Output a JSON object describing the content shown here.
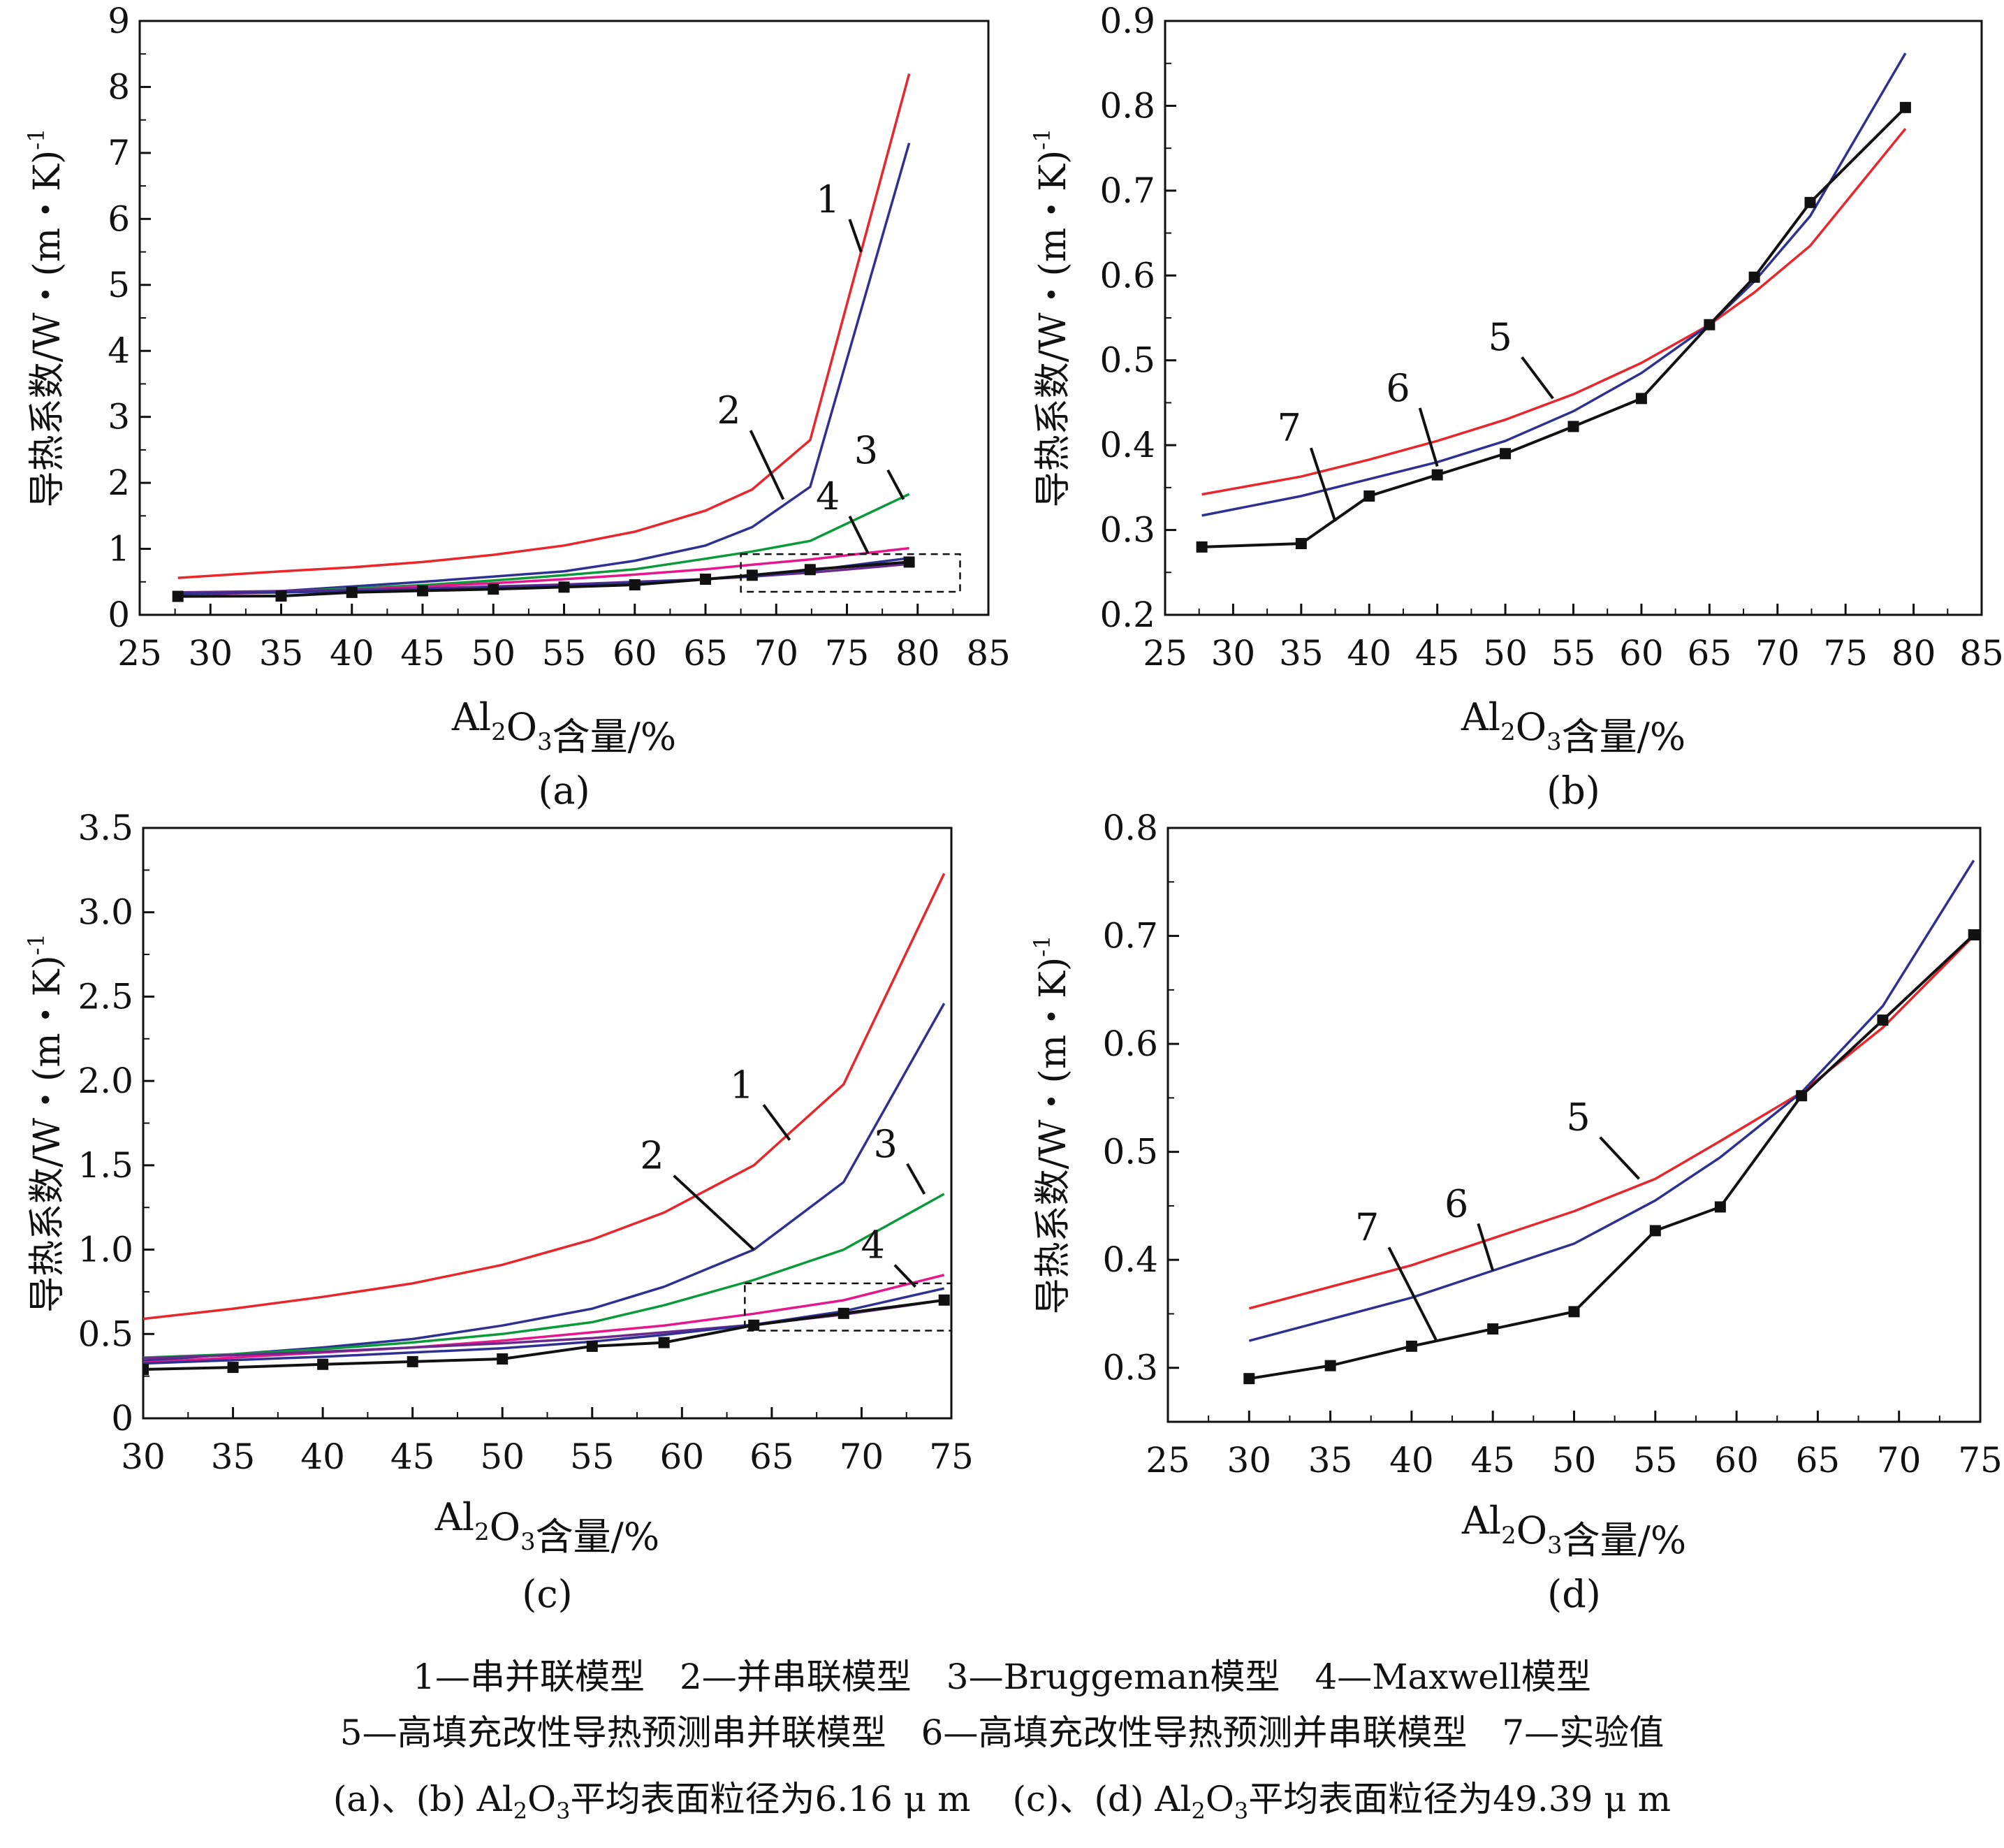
{
  "chart_data": [
    {
      "id": "a",
      "type": "line",
      "panel_label": "(a)",
      "xlabel_pre": "Al",
      "xlabel_sub1": "2",
      "xlabel_mid": "O",
      "xlabel_sub2": "3",
      "xlabel_post": "含量/%",
      "ylabel": "导热系数/W・(m・K)",
      "ylabel_sup": "-1",
      "xlim": [
        25,
        85
      ],
      "ylim": [
        0,
        9
      ],
      "xticks": [
        25,
        30,
        35,
        40,
        45,
        50,
        55,
        60,
        65,
        70,
        75,
        80,
        85
      ],
      "yticks": [
        0,
        1,
        2,
        3,
        4,
        5,
        6,
        7,
        8,
        9
      ],
      "ytick_labels": [
        "0",
        "1",
        "2",
        "3",
        "4",
        "5",
        "6",
        "7",
        "8",
        "9"
      ],
      "series": [
        {
          "key": "1",
          "color": "#e8262b",
          "x": [
            27.7,
            35,
            40,
            45,
            50,
            55,
            60,
            65,
            68.3,
            72.4,
            79.4
          ],
          "y": [
            0.56,
            0.66,
            0.72,
            0.8,
            0.91,
            1.05,
            1.26,
            1.58,
            1.9,
            2.65,
            8.2
          ]
        },
        {
          "key": "2",
          "color": "#2e3191",
          "x": [
            27.7,
            35,
            40,
            45,
            50,
            55,
            60,
            65,
            68.3,
            72.4,
            79.4
          ],
          "y": [
            0.3,
            0.36,
            0.43,
            0.5,
            0.58,
            0.66,
            0.82,
            1.05,
            1.33,
            1.94,
            7.15
          ]
        },
        {
          "key": "3",
          "color": "#0a9a3a",
          "x": [
            27.7,
            35,
            40,
            45,
            50,
            55,
            60,
            65,
            68.3,
            72.4,
            79.4
          ],
          "y": [
            0.3,
            0.35,
            0.4,
            0.45,
            0.52,
            0.6,
            0.69,
            0.85,
            0.96,
            1.12,
            1.83
          ]
        },
        {
          "key": "4",
          "color": "#e6178c",
          "x": [
            27.7,
            35,
            40,
            45,
            50,
            55,
            60,
            65,
            68.3,
            72.4,
            79.4
          ],
          "y": [
            0.31,
            0.34,
            0.38,
            0.43,
            0.48,
            0.54,
            0.61,
            0.69,
            0.76,
            0.84,
            1.01
          ]
        },
        {
          "key": "5",
          "color": "#6a2a8c",
          "x": [
            27.7,
            35,
            40,
            45,
            50,
            55,
            60,
            65,
            68.3,
            72.4,
            79.4
          ],
          "y": [
            0.34,
            0.36,
            0.38,
            0.4,
            0.43,
            0.46,
            0.5,
            0.54,
            0.58,
            0.64,
            0.77
          ]
        },
        {
          "key": "6",
          "color": "#2e3191",
          "x": [
            27.7,
            35,
            40,
            45,
            50,
            55,
            60,
            65,
            68.3,
            72.4,
            79.4
          ],
          "y": [
            0.32,
            0.34,
            0.36,
            0.38,
            0.41,
            0.44,
            0.49,
            0.54,
            0.59,
            0.67,
            0.86
          ]
        },
        {
          "key": "7",
          "color": "#111111",
          "marker": true,
          "x": [
            27.7,
            35,
            40,
            45,
            50,
            55,
            60,
            65,
            68.3,
            72.4,
            79.4
          ],
          "y": [
            0.28,
            0.285,
            0.34,
            0.365,
            0.39,
            0.42,
            0.455,
            0.54,
            0.6,
            0.685,
            0.8
          ]
        }
      ],
      "labels": [
        {
          "text": "1",
          "x": 76,
          "y": 5.5,
          "tx": 74.5,
          "ty": 6.1
        },
        {
          "text": "2",
          "x": 70.5,
          "y": 1.75,
          "tx": 67.5,
          "ty": 2.9
        },
        {
          "text": "3",
          "x": 79,
          "y": 1.75,
          "tx": 77.2,
          "ty": 2.3
        },
        {
          "text": "4",
          "x": 76.5,
          "y": 0.93,
          "tx": 74.5,
          "ty": 1.6
        }
      ],
      "box": {
        "x0": 67.5,
        "x1": 83,
        "y0": 0.35,
        "y1": 0.92
      }
    },
    {
      "id": "b",
      "type": "line",
      "panel_label": "(b)",
      "xlabel_pre": "Al",
      "xlabel_sub1": "2",
      "xlabel_mid": "O",
      "xlabel_sub2": "3",
      "xlabel_post": "含量/%",
      "ylabel": "导热系数/W・(m・K)",
      "ylabel_sup": "-1",
      "xlim": [
        25,
        85
      ],
      "ylim": [
        0.2,
        0.9
      ],
      "xticks": [
        25,
        30,
        35,
        40,
        45,
        50,
        55,
        60,
        65,
        70,
        75,
        80,
        85
      ],
      "yticks": [
        0.2,
        0.3,
        0.4,
        0.5,
        0.6,
        0.7,
        0.8,
        0.9
      ],
      "ytick_labels": [
        "0.2",
        "0.3",
        "0.4",
        "0.5",
        "0.6",
        "0.7",
        "0.8",
        "0.9"
      ],
      "series": [
        {
          "key": "5",
          "color": "#e8262b",
          "x": [
            27.7,
            35,
            40,
            45,
            50,
            55,
            60,
            65,
            68.3,
            72.4,
            79.4
          ],
          "y": [
            0.342,
            0.363,
            0.383,
            0.405,
            0.43,
            0.46,
            0.497,
            0.542,
            0.58,
            0.635,
            0.773
          ]
        },
        {
          "key": "6",
          "color": "#2e3191",
          "x": [
            27.7,
            35,
            40,
            45,
            50,
            55,
            60,
            65,
            68.3,
            72.4,
            79.4
          ],
          "y": [
            0.317,
            0.34,
            0.36,
            0.38,
            0.405,
            0.44,
            0.485,
            0.542,
            0.593,
            0.67,
            0.862
          ]
        },
        {
          "key": "7",
          "color": "#111111",
          "marker": true,
          "x": [
            27.7,
            35,
            40,
            45,
            50,
            55,
            60,
            65,
            68.3,
            72.4,
            79.4
          ],
          "y": [
            0.28,
            0.284,
            0.34,
            0.365,
            0.39,
            0.422,
            0.455,
            0.542,
            0.598,
            0.686,
            0.798
          ]
        }
      ],
      "labels": [
        {
          "text": "5",
          "x": 53.5,
          "y": 0.455,
          "tx": 50.5,
          "ty": 0.512
        },
        {
          "text": "6",
          "x": 45,
          "y": 0.375,
          "tx": 43,
          "ty": 0.452
        },
        {
          "text": "7",
          "x": 37.5,
          "y": 0.31,
          "tx": 35,
          "ty": 0.405
        }
      ]
    },
    {
      "id": "c",
      "type": "line",
      "panel_label": "(c)",
      "xlabel_pre": "Al",
      "xlabel_sub1": "2",
      "xlabel_mid": "O",
      "xlabel_sub2": "3",
      "xlabel_post": "含量/%",
      "ylabel": "导热系数/W・(m・K)",
      "ylabel_sup": "-1",
      "xlim": [
        30,
        75
      ],
      "ylim": [
        0,
        3.5
      ],
      "xticks": [
        30,
        35,
        40,
        45,
        50,
        55,
        60,
        65,
        70,
        75
      ],
      "yticks": [
        0,
        0.5,
        1.0,
        1.5,
        2.0,
        2.5,
        3.0,
        3.5
      ],
      "ytick_labels": [
        "0",
        "0.5",
        "1.0",
        "1.5",
        "2.0",
        "2.5",
        "3.0",
        "3.5"
      ],
      "series": [
        {
          "key": "1",
          "color": "#e8262b",
          "x": [
            30,
            35,
            40,
            45,
            50,
            55,
            59,
            64,
            69,
            74.6
          ],
          "y": [
            0.59,
            0.65,
            0.72,
            0.8,
            0.91,
            1.06,
            1.22,
            1.5,
            1.98,
            3.23
          ]
        },
        {
          "key": "2",
          "color": "#2e3191",
          "x": [
            30,
            35,
            40,
            45,
            50,
            55,
            59,
            64,
            69,
            74.6
          ],
          "y": [
            0.34,
            0.38,
            0.42,
            0.47,
            0.55,
            0.65,
            0.78,
            1.0,
            1.4,
            2.46
          ]
        },
        {
          "key": "3",
          "color": "#0a9a3a",
          "x": [
            30,
            35,
            40,
            45,
            50,
            55,
            59,
            64,
            69,
            74.6
          ],
          "y": [
            0.36,
            0.38,
            0.41,
            0.45,
            0.5,
            0.57,
            0.67,
            0.82,
            1.0,
            1.33
          ]
        },
        {
          "key": "4",
          "color": "#e6178c",
          "x": [
            30,
            35,
            40,
            45,
            50,
            55,
            59,
            64,
            69,
            74.6
          ],
          "y": [
            0.33,
            0.36,
            0.39,
            0.42,
            0.46,
            0.51,
            0.55,
            0.62,
            0.7,
            0.85
          ]
        },
        {
          "key": "5",
          "color": "#6a2a8c",
          "x": [
            30,
            35,
            40,
            45,
            50,
            55,
            59,
            64,
            69,
            74.6
          ],
          "y": [
            0.355,
            0.375,
            0.395,
            0.42,
            0.445,
            0.475,
            0.51,
            0.555,
            0.615,
            0.7
          ]
        },
        {
          "key": "6",
          "color": "#2e3191",
          "x": [
            30,
            35,
            40,
            45,
            50,
            55,
            59,
            64,
            69,
            74.6
          ],
          "y": [
            0.325,
            0.345,
            0.365,
            0.39,
            0.415,
            0.455,
            0.495,
            0.555,
            0.635,
            0.77
          ]
        },
        {
          "key": "7",
          "color": "#111111",
          "marker": true,
          "x": [
            30,
            35,
            40,
            45,
            50,
            55,
            59,
            64,
            69,
            74.6
          ],
          "y": [
            0.29,
            0.302,
            0.32,
            0.336,
            0.352,
            0.427,
            0.449,
            0.552,
            0.622,
            0.701
          ]
        }
      ],
      "labels": [
        {
          "text": "1",
          "x": 66,
          "y": 1.65,
          "tx": 64,
          "ty": 1.9
        },
        {
          "text": "2",
          "x": 64,
          "y": 1.0,
          "tx": 59,
          "ty": 1.48
        },
        {
          "text": "3",
          "x": 73.5,
          "y": 1.33,
          "tx": 72,
          "ty": 1.55
        },
        {
          "text": "4",
          "x": 73,
          "y": 0.78,
          "tx": 71.3,
          "ty": 0.95
        }
      ],
      "box": {
        "x0": 63.5,
        "x1": 75,
        "y0": 0.52,
        "y1": 0.8
      }
    },
    {
      "id": "d",
      "type": "line",
      "panel_label": "(d)",
      "xlabel_pre": "Al",
      "xlabel_sub1": "2",
      "xlabel_mid": "O",
      "xlabel_sub2": "3",
      "xlabel_post": "含量/%",
      "ylabel": "导热系数/W・(m・K)",
      "ylabel_sup": "-1",
      "xlim": [
        25,
        75
      ],
      "ylim": [
        0.25,
        0.8
      ],
      "xticks": [
        25,
        30,
        35,
        40,
        45,
        50,
        55,
        60,
        65,
        70,
        75
      ],
      "yticks": [
        0.3,
        0.4,
        0.5,
        0.6,
        0.7,
        0.8
      ],
      "ytick_labels": [
        "0.3",
        "0.4",
        "0.5",
        "0.6",
        "0.7",
        "0.8"
      ],
      "series": [
        {
          "key": "5",
          "color": "#e8262b",
          "x": [
            30,
            35,
            40,
            45,
            50,
            55,
            59,
            64,
            69,
            74.6
          ],
          "y": [
            0.355,
            0.375,
            0.395,
            0.42,
            0.445,
            0.475,
            0.51,
            0.555,
            0.615,
            0.7
          ]
        },
        {
          "key": "6",
          "color": "#2e3191",
          "x": [
            30,
            35,
            40,
            45,
            50,
            55,
            59,
            64,
            69,
            74.6
          ],
          "y": [
            0.325,
            0.345,
            0.365,
            0.39,
            0.415,
            0.455,
            0.495,
            0.555,
            0.635,
            0.77
          ]
        },
        {
          "key": "7",
          "color": "#111111",
          "marker": true,
          "x": [
            30,
            35,
            40,
            45,
            50,
            55,
            59,
            64,
            69,
            74.6
          ],
          "y": [
            0.29,
            0.302,
            0.32,
            0.336,
            0.352,
            0.427,
            0.449,
            0.552,
            0.622,
            0.701
          ]
        }
      ],
      "labels": [
        {
          "text": "5",
          "x": 54,
          "y": 0.475,
          "tx": 51,
          "ty": 0.52
        },
        {
          "text": "6",
          "x": 45,
          "y": 0.39,
          "tx": 43.5,
          "ty": 0.44
        },
        {
          "text": "7",
          "x": 41.5,
          "y": 0.326,
          "tx": 38,
          "ty": 0.418
        }
      ]
    }
  ],
  "legend_line1": "1—串并联模型　2—并串联模型　3—Bruggeman模型　4—Maxwell模型",
  "legend_line2": "5—高填充改性导热预测串并联模型　6—高填充改性导热预测并串联模型　7—实验值",
  "caption_ab_pre": "(a)、(b) Al",
  "caption_ab_sub1": "2",
  "caption_ab_mid": "O",
  "caption_ab_sub2": "3",
  "caption_ab_post": "平均表面粒径为6.16 μ m",
  "caption_cd_pre": "(c)、(d) Al",
  "caption_cd_sub1": "2",
  "caption_cd_mid": "O",
  "caption_cd_sub2": "3",
  "caption_cd_post": "平均表面粒径为49.39 μ m"
}
